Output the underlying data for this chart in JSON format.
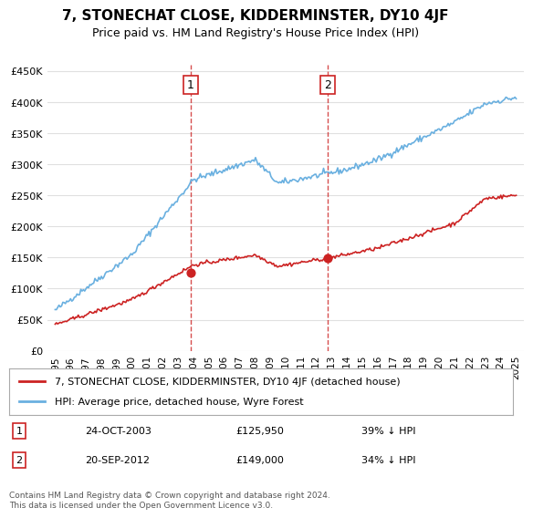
{
  "title": "7, STONECHAT CLOSE, KIDDERMINSTER, DY10 4JF",
  "subtitle": "Price paid vs. HM Land Registry's House Price Index (HPI)",
  "hpi_color": "#6ab0e0",
  "price_color": "#cc2222",
  "marker_color": "#cc2222",
  "vline_color": "#cc2222",
  "background_color": "#ffffff",
  "grid_color": "#e0e0e0",
  "ylim": [
    0,
    460000
  ],
  "yticks": [
    0,
    50000,
    100000,
    150000,
    200000,
    250000,
    300000,
    350000,
    400000,
    450000
  ],
  "ytick_labels": [
    "£0",
    "£50K",
    "£100K",
    "£150K",
    "£200K",
    "£250K",
    "£300K",
    "£350K",
    "£400K",
    "£450K"
  ],
  "xlim_start": 1994.5,
  "xlim_end": 2025.5,
  "transaction1_date": 2003.82,
  "transaction1_price": 125950,
  "transaction1_label": "1",
  "transaction1_text": "24-OCT-2003",
  "transaction1_price_str": "£125,950",
  "transaction1_hpi_str": "39% ↓ HPI",
  "transaction2_date": 2012.73,
  "transaction2_price": 149000,
  "transaction2_label": "2",
  "transaction2_text": "20-SEP-2012",
  "transaction2_price_str": "£149,000",
  "transaction2_hpi_str": "34% ↓ HPI",
  "legend_line1": "7, STONECHAT CLOSE, KIDDERMINSTER, DY10 4JF (detached house)",
  "legend_line2": "HPI: Average price, detached house, Wyre Forest",
  "footer": "Contains HM Land Registry data © Crown copyright and database right 2024.\nThis data is licensed under the Open Government Licence v3.0.",
  "font_family": "DejaVu Sans"
}
